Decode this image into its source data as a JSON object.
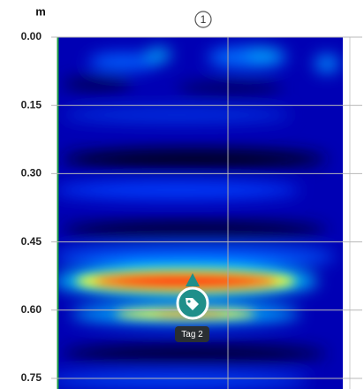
{
  "depth_axis": {
    "unit": "m",
    "ticks": [
      {
        "value": 0,
        "label": "0.00"
      },
      {
        "value": 0.15,
        "label": "0.15"
      },
      {
        "value": 0.3,
        "label": "0.30"
      },
      {
        "value": 0.45,
        "label": "0.45"
      },
      {
        "value": 0.6,
        "label": "0.60"
      },
      {
        "value": 0.75,
        "label": "0.75"
      }
    ]
  },
  "marker": "1",
  "tag": {
    "label": "Tag 2"
  }
}
